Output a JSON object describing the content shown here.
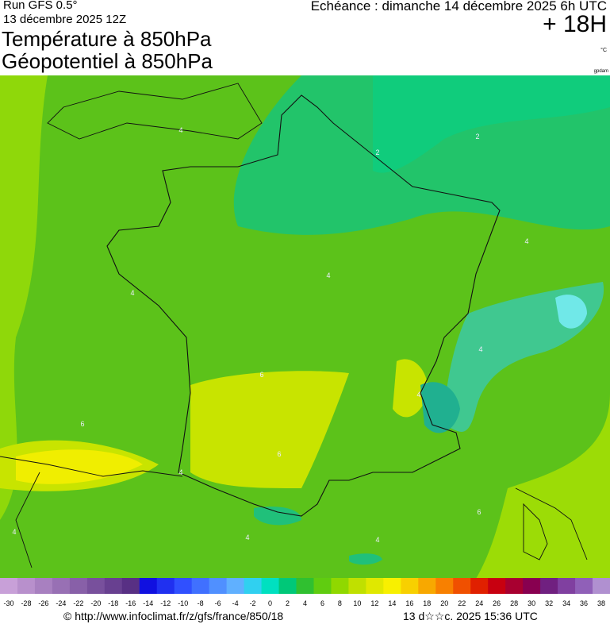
{
  "header": {
    "run": "Run GFS 0.5°",
    "date": "13 décembre 2025 12Z",
    "title1": "Température à 850hPa",
    "title2": "Géopotentiel à 850hPa",
    "valid": "Echéance : dimanche 14 décembre 2025 6h UTC",
    "lead": "+ 18H",
    "unit": "°C",
    "unit2": "gpdam"
  },
  "map": {
    "contour_labels": [
      "4",
      "2",
      "2",
      "4",
      "4",
      "4",
      "6",
      "6",
      "6",
      "4",
      "4",
      "6",
      "4",
      "4",
      "4",
      "4"
    ]
  },
  "scale": {
    "ticks": [
      -30,
      -28,
      -26,
      -24,
      -22,
      -20,
      -18,
      -16,
      -14,
      -12,
      -10,
      -8,
      -6,
      -4,
      -2,
      0,
      2,
      4,
      6,
      8,
      10,
      12,
      14,
      16,
      18,
      20,
      22,
      24,
      26,
      28,
      30,
      32,
      34,
      36,
      38
    ],
    "colors": [
      "#c8a0d8",
      "#b890cc",
      "#a880c0",
      "#9870b4",
      "#8860a8",
      "#78509c",
      "#684090",
      "#583084",
      "#1010e0",
      "#2030f0",
      "#3050ff",
      "#4070ff",
      "#5090ff",
      "#60b0ff",
      "#30d0f0",
      "#00e0c0",
      "#00c878",
      "#30c030",
      "#60cc10",
      "#90d800",
      "#c0e000",
      "#e0e800",
      "#f8f000",
      "#f8d000",
      "#f8a800",
      "#f88000",
      "#f05000",
      "#e02000",
      "#c80010",
      "#a80030",
      "#880050",
      "#702080",
      "#8040a0",
      "#9060b8",
      "#b090d0"
    ]
  },
  "footer": {
    "url": "© http://www.infoclimat.fr/z/gfs/france/850/18",
    "stamp": "13 d☆☆c. 2025 15:36 UTC"
  }
}
